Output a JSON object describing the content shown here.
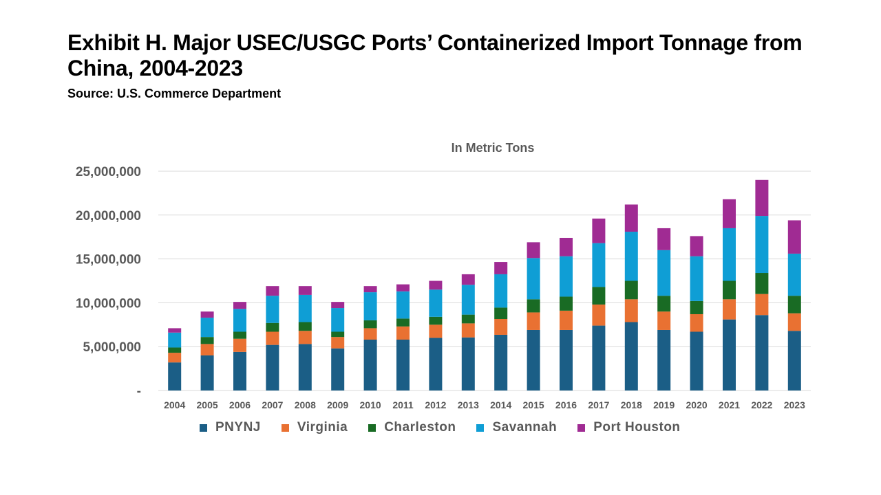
{
  "title": "Exhibit H. Major USEC/USGC Ports’ Containerized Import Tonnage from China, 2004-2023",
  "source": "Source: U.S. Commerce Department",
  "chart_data": {
    "type": "bar",
    "stacked": true,
    "subtitle": "In Metric Tons",
    "categories": [
      "2004",
      "2005",
      "2006",
      "2007",
      "2008",
      "2009",
      "2010",
      "2011",
      "2012",
      "2013",
      "2014",
      "2015",
      "2016",
      "2017",
      "2018",
      "2019",
      "2020",
      "2021",
      "2022",
      "2023"
    ],
    "series": [
      {
        "name": "PNYNJ",
        "color": "#1b5e86",
        "values": [
          3200000,
          4000000,
          4400000,
          5200000,
          5300000,
          4800000,
          5800000,
          5800000,
          6000000,
          6050000,
          6350000,
          6900000,
          6900000,
          7400000,
          7800000,
          6900000,
          6700000,
          8100000,
          8600000,
          6800000
        ]
      },
      {
        "name": "Virginia",
        "color": "#e97132",
        "values": [
          1100000,
          1300000,
          1500000,
          1500000,
          1500000,
          1300000,
          1300000,
          1500000,
          1500000,
          1600000,
          1800000,
          2000000,
          2200000,
          2400000,
          2600000,
          2100000,
          2000000,
          2300000,
          2400000,
          2000000
        ]
      },
      {
        "name": "Charleston",
        "color": "#196b24",
        "values": [
          600000,
          800000,
          800000,
          1000000,
          1000000,
          600000,
          900000,
          900000,
          900000,
          1000000,
          1300000,
          1500000,
          1600000,
          2000000,
          2100000,
          1800000,
          1500000,
          2100000,
          2400000,
          2000000
        ]
      },
      {
        "name": "Savannah",
        "color": "#0f9ed5",
        "values": [
          1700000,
          2200000,
          2600000,
          3100000,
          3100000,
          2700000,
          3200000,
          3100000,
          3100000,
          3400000,
          3800000,
          4700000,
          4600000,
          5000000,
          5600000,
          5200000,
          5100000,
          6000000,
          6500000,
          4800000
        ]
      },
      {
        "name": "Port Houston",
        "color": "#a02b93",
        "values": [
          500000,
          700000,
          800000,
          1100000,
          1000000,
          700000,
          700000,
          800000,
          1000000,
          1200000,
          1400000,
          1800000,
          2100000,
          2800000,
          3100000,
          2500000,
          2300000,
          3300000,
          4100000,
          3800000
        ]
      }
    ],
    "ylim": [
      0,
      25000000
    ],
    "yticks": [
      0,
      5000000,
      10000000,
      15000000,
      20000000,
      25000000
    ],
    "ytick_labels": [
      "-",
      "5,000,000",
      "10,000,000",
      "15,000,000",
      "20,000,000",
      "25,000,000"
    ],
    "grid": true,
    "legend_position": "bottom"
  }
}
